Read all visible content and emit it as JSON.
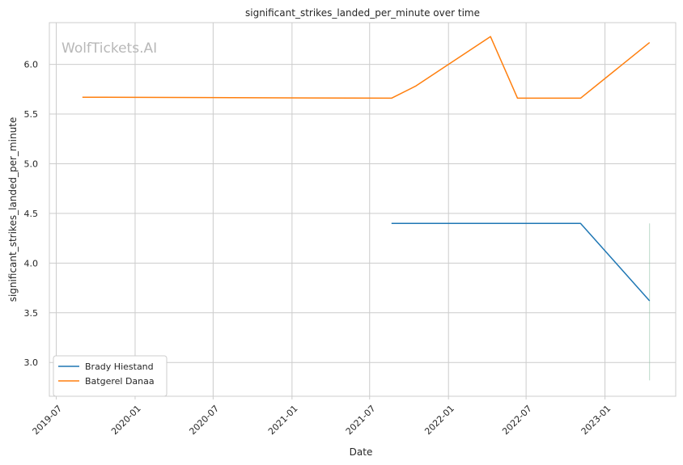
{
  "chart_data": {
    "type": "line",
    "title": "significant_strikes_landed_per_minute over time",
    "xlabel": "Date",
    "ylabel": "significant_strikes_landed_per_minute",
    "watermark": "WolfTickets.AI",
    "x_range": [
      "2019-06-15",
      "2023-06-15"
    ],
    "ylim": [
      2.66,
      6.42
    ],
    "x_ticks": [
      "2019-07",
      "2020-01",
      "2020-07",
      "2021-01",
      "2021-07",
      "2022-01",
      "2022-07",
      "2023-01"
    ],
    "y_ticks": [
      "3.0",
      "3.5",
      "4.0",
      "4.5",
      "5.0",
      "5.5",
      "6.0"
    ],
    "grid": true,
    "legend_position": "lower-left",
    "series": [
      {
        "name": "Brady Hiestand",
        "color": "#1f77b4",
        "x": [
          "2021-08-21",
          "2022-11-05",
          "2023-04-15"
        ],
        "y": [
          4.4,
          4.4,
          3.62
        ]
      },
      {
        "name": "Batgerel Danaa",
        "color": "#ff7f0e",
        "x": [
          "2019-08-31",
          "2021-08-21",
          "2021-10-16",
          "2022-04-09",
          "2022-06-11",
          "2022-11-05",
          "2023-04-15"
        ],
        "y": [
          5.67,
          5.66,
          5.78,
          6.28,
          5.66,
          5.66,
          6.22
        ]
      }
    ],
    "annotations": [
      {
        "type": "vertical-band",
        "x": "2023-04-15",
        "y_range": [
          2.82,
          4.4
        ],
        "color": "#8fbfa5"
      }
    ]
  }
}
